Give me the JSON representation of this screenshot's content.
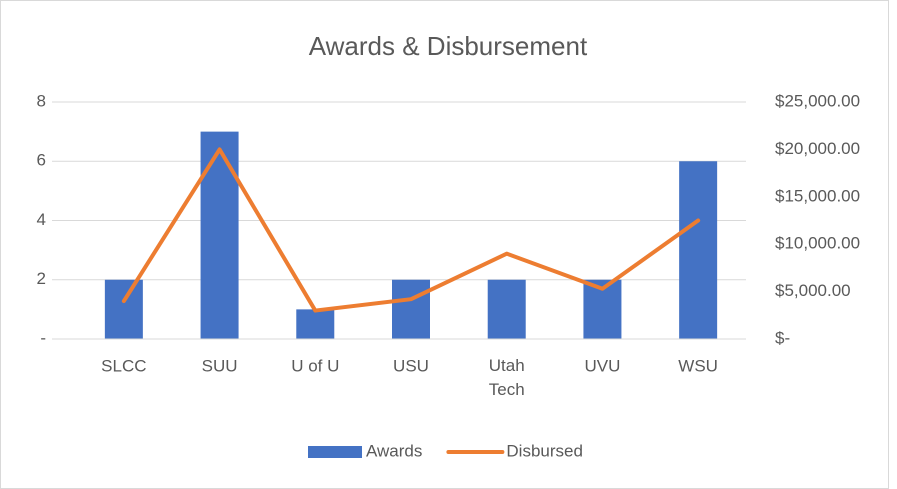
{
  "chart_data": {
    "type": "bar-line",
    "title": "Awards & Disbursement",
    "categories": [
      "SLCC",
      "SUU",
      "U of U",
      "USU",
      "Utah Tech",
      "UVU",
      "WSU"
    ],
    "series": [
      {
        "name": "Awards",
        "color": "#4472c4",
        "type": "bar",
        "values": [
          2,
          7,
          1,
          2,
          2,
          2,
          6
        ]
      },
      {
        "name": "Disbursed",
        "color": "#ed7d31",
        "type": "line",
        "axis": "y2",
        "values": [
          4000,
          20000,
          3000,
          4200,
          9000,
          5300,
          12500
        ]
      }
    ],
    "ylim": [
      0,
      8
    ],
    "yticks": [
      {
        "value": 0,
        "label": "-"
      },
      2,
      4,
      6,
      8
    ],
    "y2lim": [
      0,
      25000
    ],
    "y2ticks": [
      {
        "value": 0,
        "label": "$-"
      },
      {
        "value": 5000,
        "label": "$5,000.00"
      },
      {
        "value": 10000,
        "label": "$10,000.00"
      },
      {
        "value": 15000,
        "label": "$15,000.00"
      },
      {
        "value": 20000,
        "label": "$20,000.00"
      },
      {
        "value": 25000,
        "label": "$25,000.00"
      }
    ],
    "grid": true,
    "legend": "bottom"
  }
}
